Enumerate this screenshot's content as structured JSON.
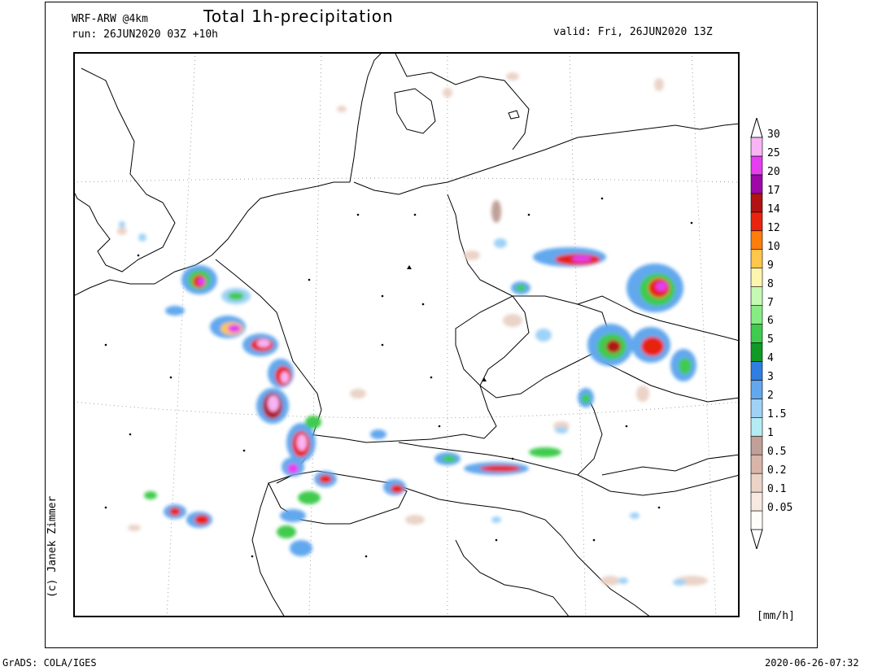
{
  "header": {
    "model": "WRF-ARW @4km",
    "run": "run: 26JUN2020 03Z +10h",
    "title": "Total 1h-precipitation",
    "valid": "valid: Fri, 26JUN2020 13Z"
  },
  "footer": {
    "software": "GrADS: COLA/IGES",
    "timestamp": "2020-06-26-07:32"
  },
  "credit": "(c) Janek Zimmer",
  "colorbar": {
    "units": "[mm/h]",
    "levels": [
      {
        "label": "0.05",
        "color": "#fffdf8"
      },
      {
        "label": "0.1",
        "color": "#f7e9e0"
      },
      {
        "label": "0.2",
        "color": "#ead3c7"
      },
      {
        "label": "0.5",
        "color": "#d8b5a8"
      },
      {
        "label": "1",
        "color": "#c0a098"
      },
      {
        "label": "1.5",
        "color": "#b4ecf4"
      },
      {
        "label": "2",
        "color": "#9fd2f7"
      },
      {
        "label": "3",
        "color": "#62a8ee"
      },
      {
        "label": "4",
        "color": "#2f7fe2"
      },
      {
        "label": "5",
        "color": "#0e9a24"
      },
      {
        "label": "6",
        "color": "#3fcb4e"
      },
      {
        "label": "7",
        "color": "#86ed84"
      },
      {
        "label": "8",
        "color": "#c6f9b3"
      },
      {
        "label": "9",
        "color": "#fdf5ad"
      },
      {
        "label": "10",
        "color": "#fec64a"
      },
      {
        "label": "12",
        "color": "#ff7e0b"
      },
      {
        "label": "14",
        "color": "#e9240e"
      },
      {
        "label": "17",
        "color": "#b11212"
      },
      {
        "label": "20",
        "color": "#9e08a8"
      },
      {
        "label": "25",
        "color": "#e53ef0"
      },
      {
        "label": "30",
        "color": "#f8b4f4"
      }
    ]
  }
}
